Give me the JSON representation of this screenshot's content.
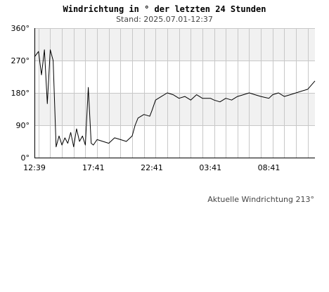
{
  "header": {
    "title": "Windrichtung in ° der letzten 24 Stunden",
    "subtitle": "Stand: 2025.07.01-12:37"
  },
  "footer": {
    "current_direction": "Aktuelle Windrichtung 213°"
  },
  "colors": {
    "line": "#000000",
    "band": "#f1f1f1",
    "grid": "#c8c8c8",
    "axis": "#000000"
  },
  "chart_data": {
    "type": "line",
    "title": "Windrichtung in ° der letzten 24 Stunden",
    "subtitle": "Stand: 2025.07.01-12:37",
    "xlabel": "",
    "ylabel": "",
    "xlim": [
      "2025-06-30 12:39",
      "2025-07-01 12:37"
    ],
    "ylim": [
      0,
      360
    ],
    "y_ticks": [
      "0°",
      "90°",
      "180°",
      "270°",
      "360°"
    ],
    "x_ticks": [
      "12:39",
      "17:41",
      "22:41",
      "03:41",
      "08:41"
    ],
    "grid": true,
    "legend": "none",
    "series": [
      {
        "x": [
          "2025-06-30 12:39",
          "2025-06-30 13:00",
          "2025-06-30 13:15",
          "2025-06-30 13:30",
          "2025-06-30 13:45",
          "2025-06-30 14:00",
          "2025-06-30 14:15",
          "2025-06-30 14:30",
          "2025-06-30 14:45",
          "2025-06-30 15:00",
          "2025-06-30 15:15",
          "2025-06-30 15:30",
          "2025-06-30 15:45",
          "2025-06-30 16:00",
          "2025-06-30 16:15",
          "2025-06-30 16:30",
          "2025-06-30 16:45",
          "2025-06-30 17:00",
          "2025-06-30 17:15",
          "2025-06-30 17:30",
          "2025-06-30 17:41",
          "2025-06-30 18:00",
          "2025-06-30 18:30",
          "2025-06-30 19:00",
          "2025-06-30 19:30",
          "2025-06-30 20:00",
          "2025-06-30 20:30",
          "2025-06-30 21:00",
          "2025-06-30 21:15",
          "2025-06-30 21:30",
          "2025-06-30 22:00",
          "2025-06-30 22:30",
          "2025-06-30 22:41",
          "2025-06-30 23:00",
          "2025-06-30 23:30",
          "2025-07-01 00:00",
          "2025-07-01 00:30",
          "2025-07-01 01:00",
          "2025-07-01 01:30",
          "2025-07-01 02:00",
          "2025-07-01 02:30",
          "2025-07-01 03:00",
          "2025-07-01 03:41",
          "2025-07-01 04:00",
          "2025-07-01 04:30",
          "2025-07-01 05:00",
          "2025-07-01 05:30",
          "2025-07-01 06:00",
          "2025-07-01 06:30",
          "2025-07-01 07:00",
          "2025-07-01 07:30",
          "2025-07-01 08:00",
          "2025-07-01 08:41",
          "2025-07-01 09:00",
          "2025-07-01 09:30",
          "2025-07-01 10:00",
          "2025-07-01 10:30",
          "2025-07-01 11:00",
          "2025-07-01 11:30",
          "2025-07-01 12:00",
          "2025-07-01 12:37"
        ],
        "values": [
          280,
          295,
          230,
          300,
          150,
          300,
          270,
          30,
          60,
          35,
          55,
          40,
          70,
          30,
          80,
          45,
          60,
          35,
          195,
          40,
          35,
          50,
          45,
          40,
          55,
          50,
          45,
          60,
          90,
          110,
          120,
          115,
          130,
          160,
          170,
          180,
          175,
          165,
          170,
          160,
          175,
          165,
          165,
          160,
          155,
          165,
          160,
          170,
          175,
          180,
          175,
          170,
          165,
          175,
          180,
          170,
          175,
          180,
          185,
          190,
          213
        ]
      }
    ]
  }
}
